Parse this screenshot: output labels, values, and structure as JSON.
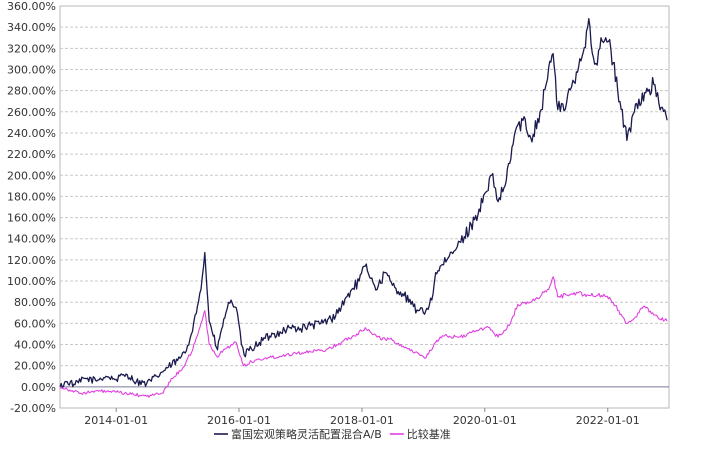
{
  "chart_data": {
    "type": "line",
    "title": "",
    "xlabel": "",
    "ylabel": "",
    "ylim": [
      -20,
      360
    ],
    "y_ticks": [
      "360.00%",
      "340.00%",
      "320.00%",
      "300.00%",
      "280.00%",
      "260.00%",
      "240.00%",
      "220.00%",
      "200.00%",
      "180.00%",
      "160.00%",
      "140.00%",
      "120.00%",
      "100.00%",
      "80.00%",
      "60.00%",
      "40.00%",
      "20.00%",
      "0.00%",
      "-20.00%"
    ],
    "y_tick_values": [
      360,
      340,
      320,
      300,
      280,
      260,
      240,
      220,
      200,
      180,
      160,
      140,
      120,
      100,
      80,
      60,
      40,
      20,
      0,
      -20
    ],
    "x_range": [
      "2013-02-01",
      "2022-12-31"
    ],
    "x_ticks": [
      "2014-01-01",
      "2016-01-01",
      "2018-01-01",
      "2020-01-01",
      "2022-01-01"
    ],
    "grid": true,
    "legend_position": "bottom-center",
    "series": [
      {
        "name": "富国宏观策略灵活配置混合A/B",
        "color": "#1a1a4e",
        "points": [
          [
            "2013-02-01",
            0
          ],
          [
            "2013-03-15",
            5
          ],
          [
            "2013-05-01",
            2
          ],
          [
            "2013-07-01",
            8
          ],
          [
            "2013-09-01",
            6
          ],
          [
            "2013-11-01",
            10
          ],
          [
            "2014-01-01",
            7
          ],
          [
            "2014-03-01",
            12
          ],
          [
            "2014-05-01",
            5
          ],
          [
            "2014-07-01",
            3
          ],
          [
            "2014-09-01",
            10
          ],
          [
            "2014-11-01",
            18
          ],
          [
            "2015-01-01",
            25
          ],
          [
            "2015-02-15",
            32
          ],
          [
            "2015-03-15",
            45
          ],
          [
            "2015-04-15",
            68
          ],
          [
            "2015-05-20",
            92
          ],
          [
            "2015-06-12",
            127
          ],
          [
            "2015-07-08",
            62
          ],
          [
            "2015-08-01",
            48
          ],
          [
            "2015-08-26",
            35
          ],
          [
            "2015-09-20",
            55
          ],
          [
            "2015-10-15",
            70
          ],
          [
            "2015-11-15",
            82
          ],
          [
            "2015-12-15",
            75
          ],
          [
            "2016-01-15",
            40
          ],
          [
            "2016-02-01",
            30
          ],
          [
            "2016-03-15",
            36
          ],
          [
            "2016-05-01",
            42
          ],
          [
            "2016-07-01",
            48
          ],
          [
            "2016-09-01",
            52
          ],
          [
            "2016-11-01",
            56
          ],
          [
            "2017-01-01",
            55
          ],
          [
            "2017-03-01",
            58
          ],
          [
            "2017-05-01",
            60
          ],
          [
            "2017-07-01",
            64
          ],
          [
            "2017-09-01",
            76
          ],
          [
            "2017-11-01",
            92
          ],
          [
            "2017-12-15",
            100
          ],
          [
            "2018-01-20",
            114
          ],
          [
            "2018-03-01",
            103
          ],
          [
            "2018-04-01",
            92
          ],
          [
            "2018-05-15",
            108
          ],
          [
            "2018-07-01",
            96
          ],
          [
            "2018-09-01",
            88
          ],
          [
            "2018-10-20",
            78
          ],
          [
            "2018-12-01",
            72
          ],
          [
            "2019-01-01",
            70
          ],
          [
            "2019-02-20",
            82
          ],
          [
            "2019-03-15",
            108
          ],
          [
            "2019-05-15",
            118
          ],
          [
            "2019-07-01",
            128
          ],
          [
            "2019-09-01",
            142
          ],
          [
            "2019-11-01",
            158
          ],
          [
            "2020-01-15",
            185
          ],
          [
            "2020-02-10",
            200
          ],
          [
            "2020-03-20",
            175
          ],
          [
            "2020-05-01",
            190
          ],
          [
            "2020-07-01",
            242
          ],
          [
            "2020-08-15",
            252
          ],
          [
            "2020-10-01",
            235
          ],
          [
            "2020-12-01",
            262
          ],
          [
            "2021-01-15",
            302
          ],
          [
            "2021-02-10",
            315
          ],
          [
            "2021-03-10",
            262
          ],
          [
            "2021-05-01",
            268
          ],
          [
            "2021-06-15",
            288
          ],
          [
            "2021-08-01",
            312
          ],
          [
            "2021-09-10",
            348
          ],
          [
            "2021-10-15",
            305
          ],
          [
            "2021-11-15",
            320
          ],
          [
            "2021-12-20",
            330
          ],
          [
            "2022-01-20",
            318
          ],
          [
            "2022-03-01",
            280
          ],
          [
            "2022-04-25",
            233
          ],
          [
            "2022-06-01",
            258
          ],
          [
            "2022-07-05",
            272
          ],
          [
            "2022-08-15",
            278
          ],
          [
            "2022-10-01",
            286
          ],
          [
            "2022-11-01",
            268
          ],
          [
            "2022-12-20",
            252
          ]
        ]
      },
      {
        "name": "比较基准",
        "color": "#e040e0",
        "points": [
          [
            "2013-02-01",
            0
          ],
          [
            "2013-04-01",
            -3
          ],
          [
            "2013-06-01",
            -6
          ],
          [
            "2013-08-01",
            -5
          ],
          [
            "2013-10-01",
            -4
          ],
          [
            "2014-01-01",
            -5
          ],
          [
            "2014-04-01",
            -7
          ],
          [
            "2014-07-01",
            -9
          ],
          [
            "2014-10-01",
            -6
          ],
          [
            "2014-12-01",
            8
          ],
          [
            "2015-02-01",
            18
          ],
          [
            "2015-04-01",
            35
          ],
          [
            "2015-06-12",
            72
          ],
          [
            "2015-07-08",
            40
          ],
          [
            "2015-08-26",
            28
          ],
          [
            "2015-10-01",
            35
          ],
          [
            "2015-12-15",
            42
          ],
          [
            "2016-01-28",
            20
          ],
          [
            "2016-03-15",
            24
          ],
          [
            "2016-06-01",
            27
          ],
          [
            "2016-09-01",
            29
          ],
          [
            "2016-12-01",
            32
          ],
          [
            "2017-03-01",
            33
          ],
          [
            "2017-06-01",
            35
          ],
          [
            "2017-09-01",
            42
          ],
          [
            "2017-12-01",
            50
          ],
          [
            "2018-01-20",
            56
          ],
          [
            "2018-04-01",
            47
          ],
          [
            "2018-07-01",
            44
          ],
          [
            "2018-10-01",
            36
          ],
          [
            "2018-12-20",
            30
          ],
          [
            "2019-01-10",
            27
          ],
          [
            "2019-03-15",
            42
          ],
          [
            "2019-05-01",
            48
          ],
          [
            "2019-08-01",
            47
          ],
          [
            "2019-11-01",
            52
          ],
          [
            "2020-01-15",
            57
          ],
          [
            "2020-03-20",
            47
          ],
          [
            "2020-06-01",
            60
          ],
          [
            "2020-07-15",
            78
          ],
          [
            "2020-10-01",
            80
          ],
          [
            "2021-01-15",
            92
          ],
          [
            "2021-02-10",
            104
          ],
          [
            "2021-03-10",
            85
          ],
          [
            "2021-06-15",
            89
          ],
          [
            "2021-09-01",
            87
          ],
          [
            "2021-12-15",
            86
          ],
          [
            "2022-02-01",
            80
          ],
          [
            "2022-04-25",
            60
          ],
          [
            "2022-06-15",
            66
          ],
          [
            "2022-08-01",
            76
          ],
          [
            "2022-10-01",
            68
          ],
          [
            "2022-12-20",
            62
          ]
        ]
      }
    ]
  }
}
